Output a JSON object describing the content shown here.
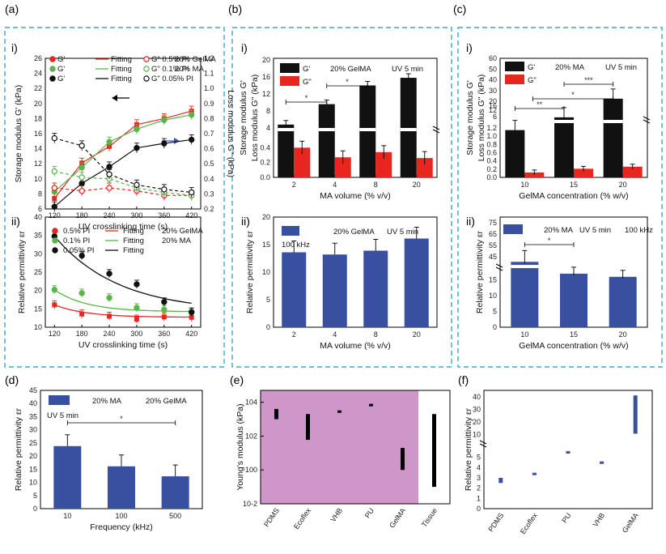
{
  "panels": {
    "a": "(a)",
    "b": "(b)",
    "c": "(c)",
    "d": "(d)",
    "e": "(e)",
    "f": "(f)"
  },
  "subpanels": {
    "i": "i)",
    "ii": "ii)"
  },
  "colors": {
    "red": "#e8251f",
    "green": "#5ab54a",
    "black": "#111111",
    "blue": "#3950a0",
    "pink": "#cf96c9",
    "frame": "#3aa9d1",
    "loss_axis": "#3a55b0"
  },
  "chart_data": [
    {
      "id": "a-i",
      "type": "scatter",
      "xlabel": "UV crosslinking time (s)",
      "ylabel": "Storage modulus G' (kPa)",
      "y2label": "Loss modulus G'' (kPa)",
      "x": [
        120,
        180,
        240,
        300,
        360,
        420
      ],
      "xticks": [
        "120",
        "180",
        "240",
        "300",
        "360",
        "420"
      ],
      "ylim": [
        6,
        26
      ],
      "yticks": [
        "6",
        "8",
        "10",
        "12",
        "14",
        "16",
        "18",
        "20",
        "22",
        "24",
        "26"
      ],
      "y2lim": [
        0.2,
        1.2
      ],
      "y2ticks": [
        "0.2",
        "0.3",
        "0.4",
        "0.5",
        "0.6",
        "0.7",
        "0.8",
        "0.9",
        "1.0",
        "1.1",
        "1.2"
      ],
      "legend": {
        "storage": [
          "G'",
          "G'",
          "G'"
        ],
        "fitting": [
          "Fitting",
          "Fitting",
          "Fitting"
        ],
        "loss": [
          "G\" 0.5% PI",
          "G\" 0.1% PI",
          "G\" 0.05% PI"
        ],
        "notes": [
          "20% GelMA",
          "20% MA"
        ]
      },
      "series": [
        {
          "kind": "storage",
          "pi": "0.5% PI",
          "color": "red",
          "values": [
            7.4,
            12.1,
            14.3,
            17.2,
            18.0,
            19.0
          ]
        },
        {
          "kind": "storage",
          "pi": "0.1% PI",
          "color": "green",
          "values": [
            8.3,
            11.5,
            14.9,
            16.6,
            17.8,
            18.5
          ]
        },
        {
          "kind": "storage",
          "pi": "0.05% PI",
          "color": "black",
          "values": [
            6.3,
            9.4,
            11.6,
            14.1,
            14.7,
            15.2
          ]
        },
        {
          "kind": "loss",
          "pi": "0.5% PI",
          "color": "red",
          "values": [
            0.34,
            0.32,
            0.34,
            0.32,
            0.29,
            0.29
          ]
        },
        {
          "kind": "loss",
          "pi": "0.1% PI",
          "color": "green",
          "values": [
            0.45,
            0.41,
            0.4,
            0.34,
            0.31,
            0.29
          ]
        },
        {
          "kind": "loss",
          "pi": "0.05% PI",
          "color": "black",
          "values": [
            0.67,
            0.62,
            0.43,
            0.36,
            0.33,
            0.31
          ]
        }
      ]
    },
    {
      "id": "a-ii",
      "type": "scatter",
      "xlabel": "UV crosslinking time (s)",
      "ylabel": "Relative permittivity εr",
      "x": [
        120,
        180,
        240,
        300,
        360,
        420
      ],
      "xticks": [
        "120",
        "180",
        "240",
        "300",
        "360",
        "420"
      ],
      "ylim": [
        10,
        40
      ],
      "yticks": [
        "10",
        "15",
        "20",
        "25",
        "30",
        "35",
        "40"
      ],
      "legend": [
        "0.5% PI",
        "0.1% PI",
        "0.05% PI"
      ],
      "fitting": [
        "Fitting",
        "Fitting",
        "Fitting"
      ],
      "notes": [
        "20% GelMA",
        "20% MA"
      ],
      "series": [
        {
          "name": "0.5% PI",
          "color": "red",
          "values": [
            16.1,
            13.6,
            13.0,
            12.2,
            12.8,
            12.7
          ]
        },
        {
          "name": "0.1% PI",
          "color": "green",
          "values": [
            20.2,
            19.3,
            18.0,
            15.3,
            14.8,
            14.2
          ]
        },
        {
          "name": "0.05% PI",
          "color": "black",
          "values": [
            34.8,
            29.5,
            24.6,
            21.7,
            16.9,
            14.1
          ]
        }
      ]
    },
    {
      "id": "b-i",
      "type": "bar",
      "categories": [
        "2",
        "4",
        "8",
        "20"
      ],
      "xlabel": "MA volume (% v/v)",
      "ylabel": "Storage modulus G'",
      "ylabel2": "Loss modulus G\" (kPa)",
      "legend": [
        "G'",
        "G\""
      ],
      "notes": [
        "20% GelMA",
        "UV  5 min"
      ],
      "series": [
        {
          "name": "G'",
          "values": [
            4.8,
            9.6,
            14.0,
            15.8
          ]
        },
        {
          "name": "G\"",
          "values": [
            0.4,
            0.27,
            0.34,
            0.26
          ]
        }
      ],
      "yticks_low": [
        "0.0",
        "0.2",
        "0.4"
      ],
      "yticks_high": [
        "4",
        "8",
        "12",
        "16",
        "20"
      ],
      "sig": [
        "*",
        "*"
      ]
    },
    {
      "id": "b-ii",
      "type": "bar",
      "categories": [
        "2",
        "4",
        "8",
        "20"
      ],
      "xlabel": "MA volume (% v/v)",
      "ylabel": "Relative permittivity εr",
      "legend": [
        "20% GelMA",
        "UV  5 min",
        "100 kHz"
      ],
      "values": [
        13.6,
        13.2,
        13.9,
        16.1
      ],
      "ylim": [
        0,
        20
      ],
      "yticks": [
        "0",
        "5",
        "10",
        "15",
        "20"
      ]
    },
    {
      "id": "c-i",
      "type": "bar",
      "categories": [
        "10",
        "15",
        "20"
      ],
      "xlabel": "GelMA concentration (% w/v)",
      "ylabel": "Storage modulus G'",
      "ylabel2": "Loss modulus G\" (kPa)",
      "legend": [
        "G'",
        "G\""
      ],
      "notes": [
        "20%  MA",
        "UV  5 min"
      ],
      "series": [
        {
          "name": "G'",
          "values": [
            1.15,
            5.6,
            16.0
          ]
        },
        {
          "name": "G\"",
          "values": [
            0.12,
            0.21,
            0.26
          ]
        }
      ],
      "yticks_low": [
        "0.0",
        "0.2",
        "0.4",
        "0.6",
        "0.8",
        "1.0",
        "1.2"
      ],
      "yticks_high": [
        "6",
        "12",
        "16",
        "20",
        "30",
        "40",
        "50",
        "60"
      ],
      "sig": [
        "**",
        "*",
        "***"
      ]
    },
    {
      "id": "c-ii",
      "type": "bar",
      "categories": [
        "10",
        "15",
        "20"
      ],
      "xlabel": "GelMA concentration (% w/v)",
      "ylabel": "Relative permittivity εr",
      "legend": [
        "20% MA",
        "UV  5 min",
        "100 kHz"
      ],
      "values": [
        40.5,
        17.0,
        16.0
      ],
      "yticks": [
        "0",
        "5",
        "10",
        "15",
        "45",
        "55",
        "65",
        "75"
      ],
      "sig": [
        "*"
      ]
    },
    {
      "id": "d",
      "type": "bar",
      "categories": [
        "10",
        "100",
        "500"
      ],
      "xlabel": "Frequency (kHz)",
      "ylabel": "Relative permittivity εr",
      "legend": [
        "20% MA",
        "20% GelMA",
        "UV  5 min"
      ],
      "values": [
        23.8,
        16.1,
        12.3
      ],
      "ylim": [
        0,
        45
      ],
      "yticks": [
        "0",
        "5",
        "10",
        "15",
        "20",
        "25",
        "30",
        "35",
        "40",
        "45"
      ],
      "sig": [
        "*"
      ]
    },
    {
      "id": "e",
      "type": "bar",
      "categories": [
        "PDMS",
        "Ecoflex",
        "VHB",
        "PU",
        "GelMA",
        "Tissue"
      ],
      "ylabel": "Young's modulus (kPa)",
      "yscale": "log",
      "ylim": [
        0.01,
        50000
      ],
      "yticks": [
        "10-2",
        "100",
        "102",
        "104"
      ],
      "ranges": [
        [
          1000,
          4000
        ],
        [
          60,
          2000
        ],
        [
          3000,
          3300
        ],
        [
          6500,
          8000
        ],
        [
          1,
          20
        ],
        [
          0.1,
          2000
        ]
      ]
    },
    {
      "id": "f",
      "type": "bar",
      "categories": [
        "PDMS",
        "Ecoflex",
        "PU",
        "VHB",
        "GelMA"
      ],
      "ylabel": "Relative permittivity εr",
      "ranges": [
        [
          2.5,
          3.0
        ],
        [
          3.3,
          3.5
        ],
        [
          5.4,
          5.6
        ],
        [
          4.5,
          4.6
        ],
        [
          10.5,
          41
        ]
      ],
      "yticks": [
        "0",
        "1",
        "2",
        "3",
        "4",
        "5",
        "10",
        "20",
        "30",
        "40"
      ]
    }
  ]
}
